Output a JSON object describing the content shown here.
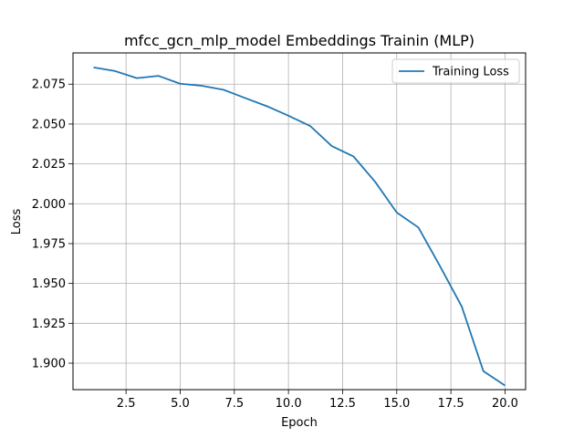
{
  "chart_data": {
    "type": "line",
    "title": "mfcc_gcn_mlp_model Embeddings Trainin (MLP)",
    "xlabel": "Epoch",
    "ylabel": "Loss",
    "xlim": [
      0.05,
      20.95
    ],
    "ylim": [
      1.8834,
      2.0946
    ],
    "xticks": [
      2.5,
      5.0,
      7.5,
      10.0,
      12.5,
      15.0,
      17.5,
      20.0
    ],
    "xtick_labels": [
      "2.5",
      "5.0",
      "7.5",
      "10.0",
      "12.5",
      "15.0",
      "17.5",
      "20.0"
    ],
    "yticks": [
      1.9,
      1.925,
      1.95,
      1.975,
      2.0,
      2.025,
      2.05,
      2.075
    ],
    "ytick_labels": [
      "1.900",
      "1.925",
      "1.950",
      "1.975",
      "2.000",
      "2.025",
      "2.050",
      "2.075"
    ],
    "grid": true,
    "legend_position": "top-right",
    "series": [
      {
        "name": "Training Loss",
        "color": "#1f77b4",
        "x": [
          1,
          2,
          3,
          4,
          5,
          6,
          7,
          8,
          9,
          10,
          11,
          12,
          13,
          14,
          15,
          16,
          17,
          18,
          19,
          20
        ],
        "y": [
          2.0855,
          2.0832,
          2.0788,
          2.0802,
          2.0753,
          2.074,
          2.0715,
          2.0663,
          2.0612,
          2.0552,
          2.0488,
          2.0362,
          2.0297,
          2.0138,
          1.9945,
          1.9851,
          1.9608,
          1.9356,
          1.895,
          1.886
        ]
      }
    ]
  }
}
